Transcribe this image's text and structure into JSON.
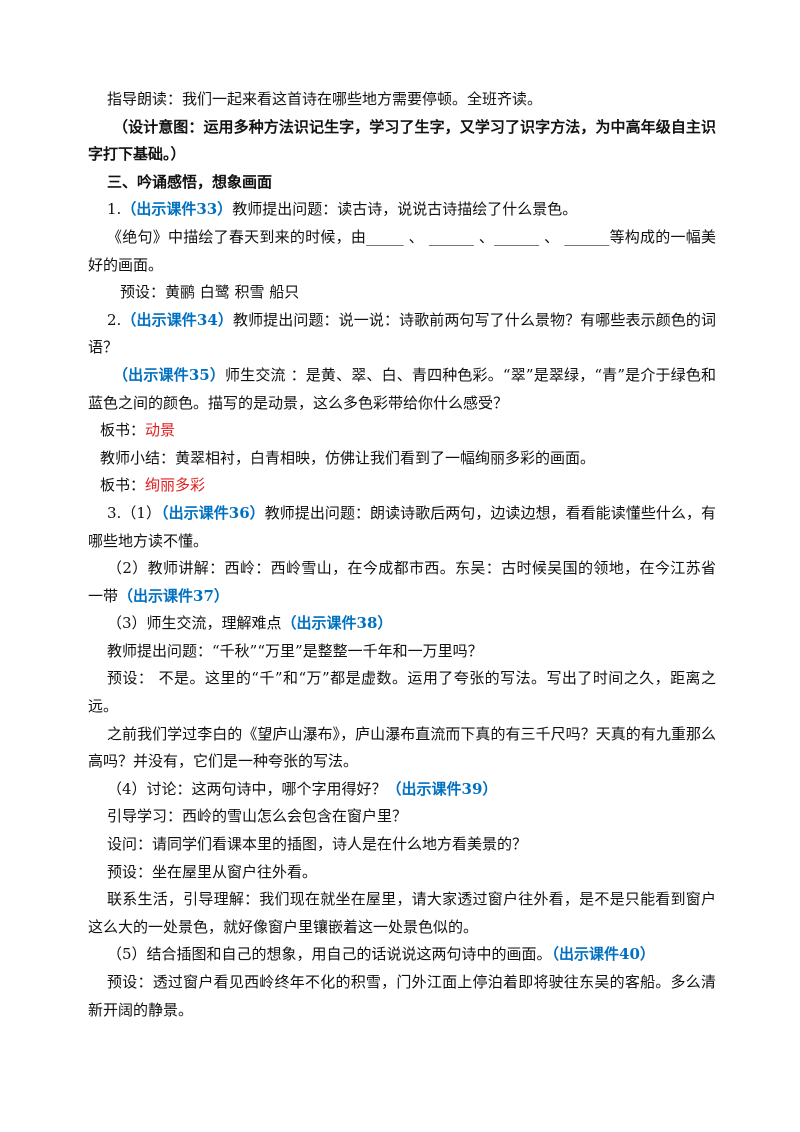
{
  "paragraphs": [
    [
      "指导朗读：我们一起来看这首诗在哪些地方需要停顿。全班齐读。"
    ],
    [
      "（",
      "设计意图：",
      "运用多种方法识记生字，学习了生字，又学习了识字方法，为中高年级自主识字打下基础。）"
    ],
    [
      "三、吟诵感悟，想象画面"
    ],
    [
      "1.",
      "（出示课件33）",
      "教师提出问题：读古诗，说说古诗描绘了什么景色。"
    ],
    [
      "《绝句》中描绘了春天到来的时候，由_____ 、 ______ 、______ 、 ______等构成的一幅美好的画面。"
    ],
    [
      "预设：黄鹂 白鹭 积雪 船只"
    ],
    [
      "2.",
      "（出示课件34）",
      "教师提出问题：说一说：诗歌前两句写了什么景物？有哪些表示颜色的词语？"
    ],
    [
      "（出示课件35）",
      "师生交流 ：是黄、翠、白、青四种色彩。“翠”是翠绿，“青”是介于绿色和蓝色之间的颜色。描写的是动景，这么多色彩带给你什么感受？"
    ],
    [
      "板书：",
      "动景"
    ],
    [
      "教师小结：黄翠相衬，白青相映，仿佛让我们看到了一幅绚丽多彩的画面。"
    ],
    [
      "板书：",
      "绚丽多彩"
    ],
    [
      "3.（1）",
      "（出示课件36）",
      "教师提出问题：朗读诗歌后两句，边读边想，看看能读懂些什么，有哪些地方读不懂。"
    ],
    [
      "（2）教师讲解：西岭：西岭雪山，在今成都市西。东吴：古时候吴国的领地，在今江苏省一带",
      "（出示课件37）"
    ],
    [
      "（3）师生交流，理解难点",
      "（出示课件38）"
    ],
    [
      "教师提出问题：“千秋”“万里”是整整一千年和一万里吗？"
    ],
    [
      "预设：    不是。这里的“千”和“万”都是虚数。运用了夸张的写法。写出了时间之久，距离之远。"
    ],
    [
      "之前我们学过李白的《望庐山瀑布》，庐山瀑布直流而下真的有三千尺吗？天真的有九重那么高吗？并没有，它们是一种夸张的写法。"
    ],
    [
      "（4）讨论：这两句诗中，哪个字用得好？",
      "（出示课件39）"
    ],
    [
      "引导学习：西岭的雪山怎么会包含在窗户里？"
    ],
    [
      "设问：请同学们看课本里的插图，诗人是在什么地方看美景的？"
    ],
    [
      "预设：坐在屋里从窗户往外看。"
    ],
    [
      "联系生活，引导理解：我们现在就坐在屋里，请大家透过窗户往外看，是不是只能看到窗户这么大的一处景色，就好像窗户里镶嵌着这一处景色似的。"
    ],
    [
      "（5）结合插图和自己的想象，用自己的话说说这两句诗中的画面。",
      "（出示课件40）"
    ],
    [
      "预设：透过窗户看见西岭终年不化的积雪，门外江面上停泊着即将驶往东吴的客船。多么清新开阔的静景。"
    ]
  ]
}
